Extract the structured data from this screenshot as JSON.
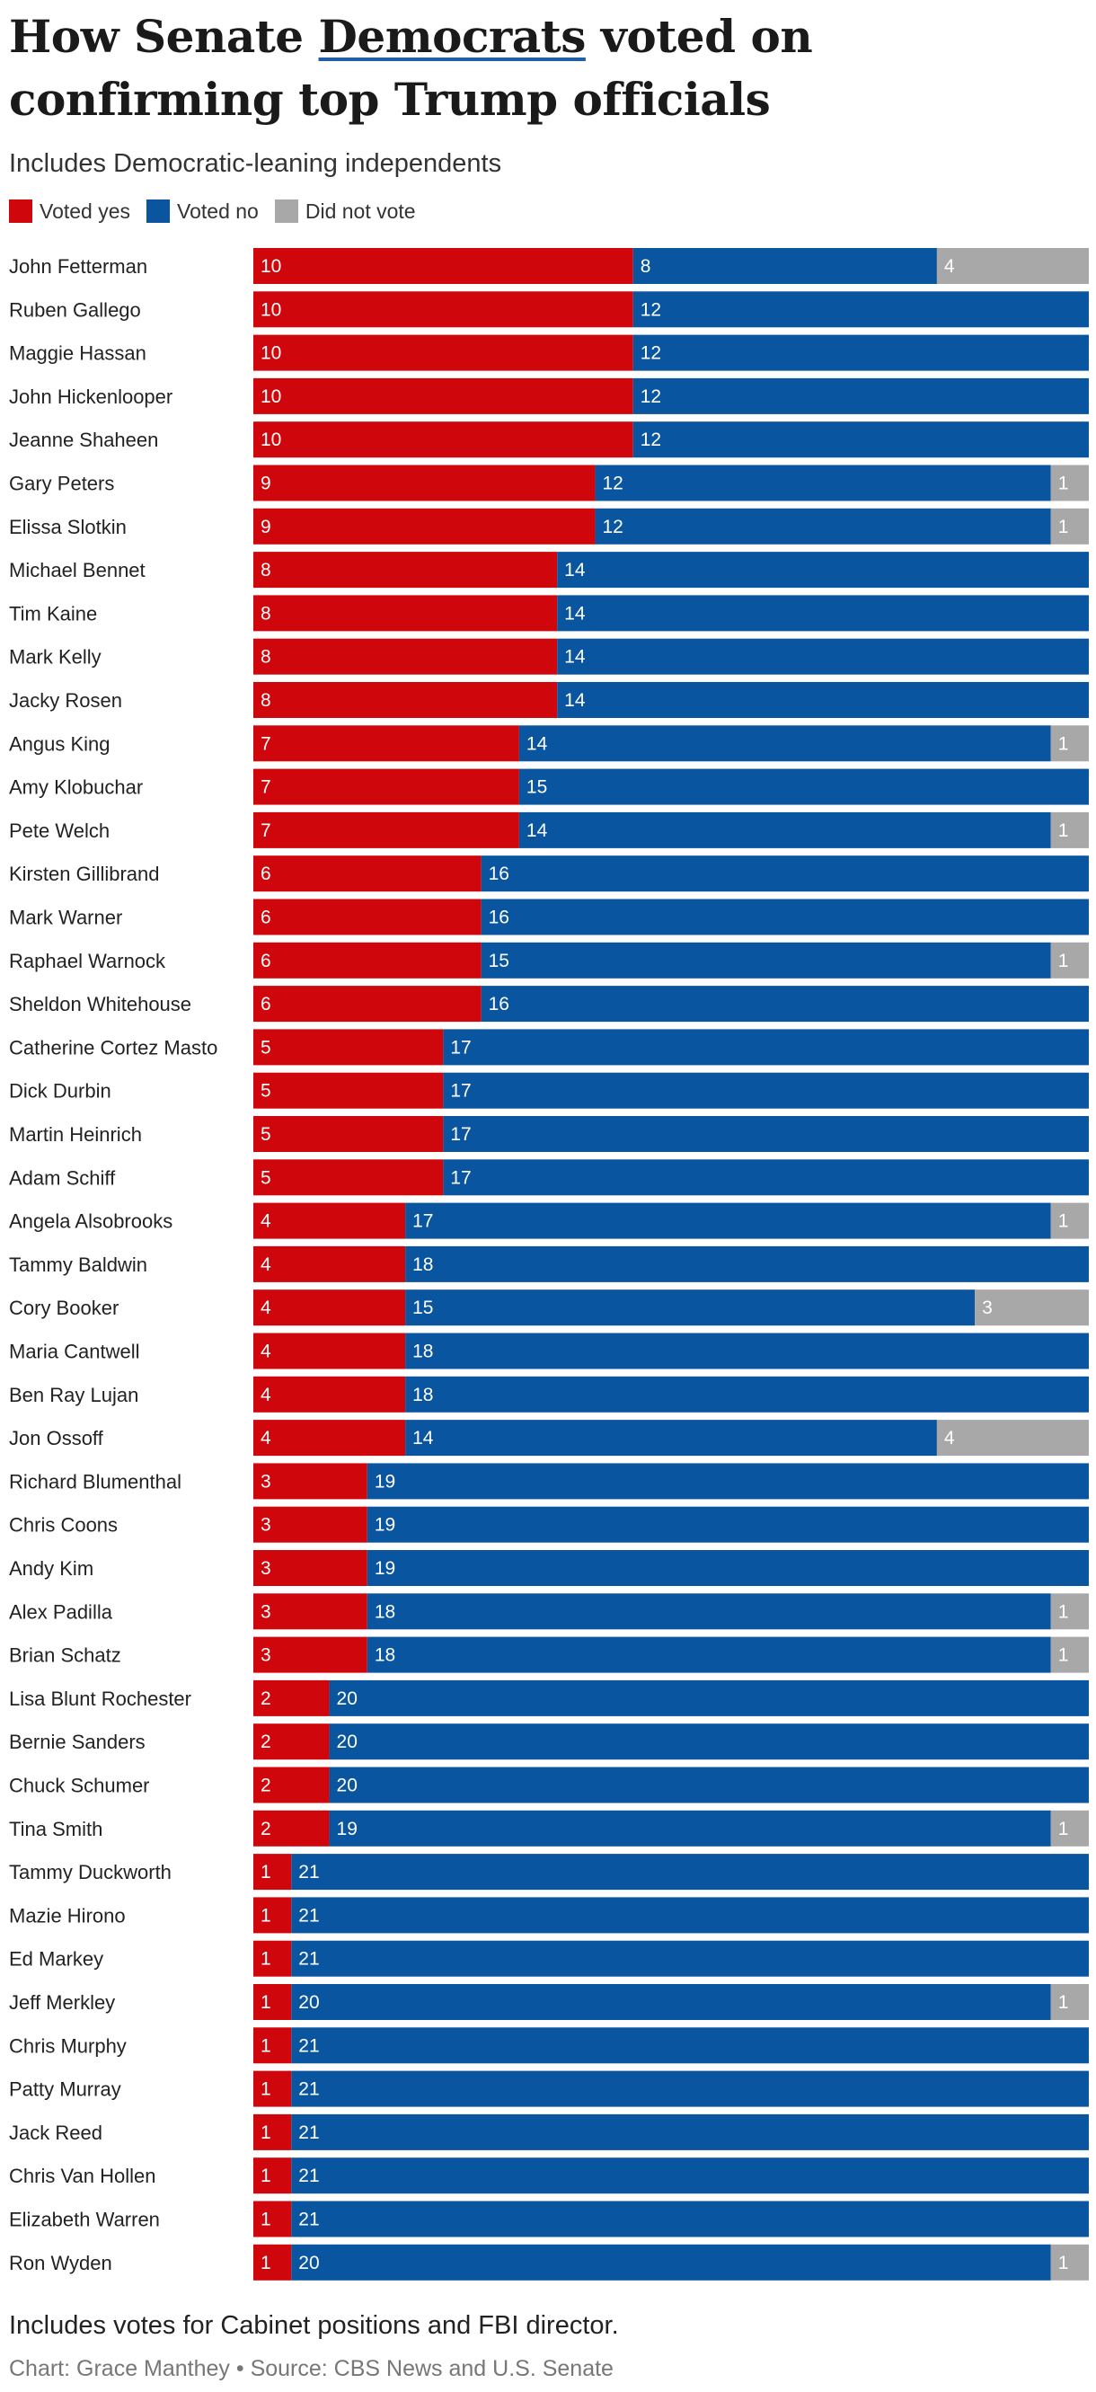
{
  "title": {
    "before": "How Senate ",
    "highlight": "Democrats",
    "after": " voted on confirming top Trump officials"
  },
  "subtitle": "Includes Democratic-leaning independents",
  "legend": [
    {
      "label": "Voted yes",
      "color": "#d0060d"
    },
    {
      "label": "Voted no",
      "color": "#0a55a0"
    },
    {
      "label": "Did not vote",
      "color": "#a8a8a8"
    }
  ],
  "chart_data": {
    "type": "bar",
    "orientation": "horizontal",
    "stacked": true,
    "categories": [
      "John Fetterman",
      "Ruben Gallego",
      "Maggie Hassan",
      "John Hickenlooper",
      "Jeanne Shaheen",
      "Gary Peters",
      "Elissa Slotkin",
      "Michael Bennet",
      "Tim Kaine",
      "Mark Kelly",
      "Jacky Rosen",
      "Angus King",
      "Amy Klobuchar",
      "Pete Welch",
      "Kirsten Gillibrand",
      "Mark Warner",
      "Raphael Warnock",
      "Sheldon Whitehouse",
      "Catherine Cortez Masto",
      "Dick Durbin",
      "Martin Heinrich",
      "Adam Schiff",
      "Angela Alsobrooks",
      "Tammy Baldwin",
      "Cory Booker",
      "Maria Cantwell",
      "Ben Ray Lujan",
      "Jon Ossoff",
      "Richard Blumenthal",
      "Chris Coons",
      "Andy Kim",
      "Alex Padilla",
      "Brian Schatz",
      "Lisa Blunt Rochester",
      "Bernie Sanders",
      "Chuck Schumer",
      "Tina Smith",
      "Tammy Duckworth",
      "Mazie Hirono",
      "Ed Markey",
      "Jeff Merkley",
      "Chris Murphy",
      "Patty Murray",
      "Jack Reed",
      "Chris Van Hollen",
      "Elizabeth Warren",
      "Ron Wyden"
    ],
    "series": [
      {
        "name": "Voted yes",
        "color": "#d0060d",
        "values": [
          10,
          10,
          10,
          10,
          10,
          9,
          9,
          8,
          8,
          8,
          8,
          7,
          7,
          7,
          6,
          6,
          6,
          6,
          5,
          5,
          5,
          5,
          4,
          4,
          4,
          4,
          4,
          4,
          3,
          3,
          3,
          3,
          3,
          2,
          2,
          2,
          2,
          1,
          1,
          1,
          1,
          1,
          1,
          1,
          1,
          1,
          1
        ]
      },
      {
        "name": "Voted no",
        "color": "#0a55a0",
        "values": [
          8,
          12,
          12,
          12,
          12,
          12,
          12,
          14,
          14,
          14,
          14,
          14,
          15,
          14,
          16,
          16,
          15,
          16,
          17,
          17,
          17,
          17,
          17,
          18,
          15,
          18,
          18,
          14,
          19,
          19,
          19,
          18,
          18,
          20,
          20,
          20,
          19,
          21,
          21,
          21,
          20,
          21,
          21,
          21,
          21,
          21,
          20
        ]
      },
      {
        "name": "Did not vote",
        "color": "#a8a8a8",
        "values": [
          4,
          0,
          0,
          0,
          0,
          1,
          1,
          0,
          0,
          0,
          0,
          1,
          0,
          1,
          0,
          0,
          1,
          0,
          0,
          0,
          0,
          0,
          1,
          0,
          3,
          0,
          0,
          4,
          0,
          0,
          0,
          1,
          1,
          0,
          0,
          0,
          1,
          0,
          0,
          0,
          1,
          0,
          0,
          0,
          0,
          0,
          1
        ]
      }
    ],
    "xlim": [
      0,
      22
    ]
  },
  "footnote": "Includes votes for Cabinet positions and FBI director.",
  "credit": "Chart: Grace Manthey • Source: CBS News and U.S. Senate"
}
